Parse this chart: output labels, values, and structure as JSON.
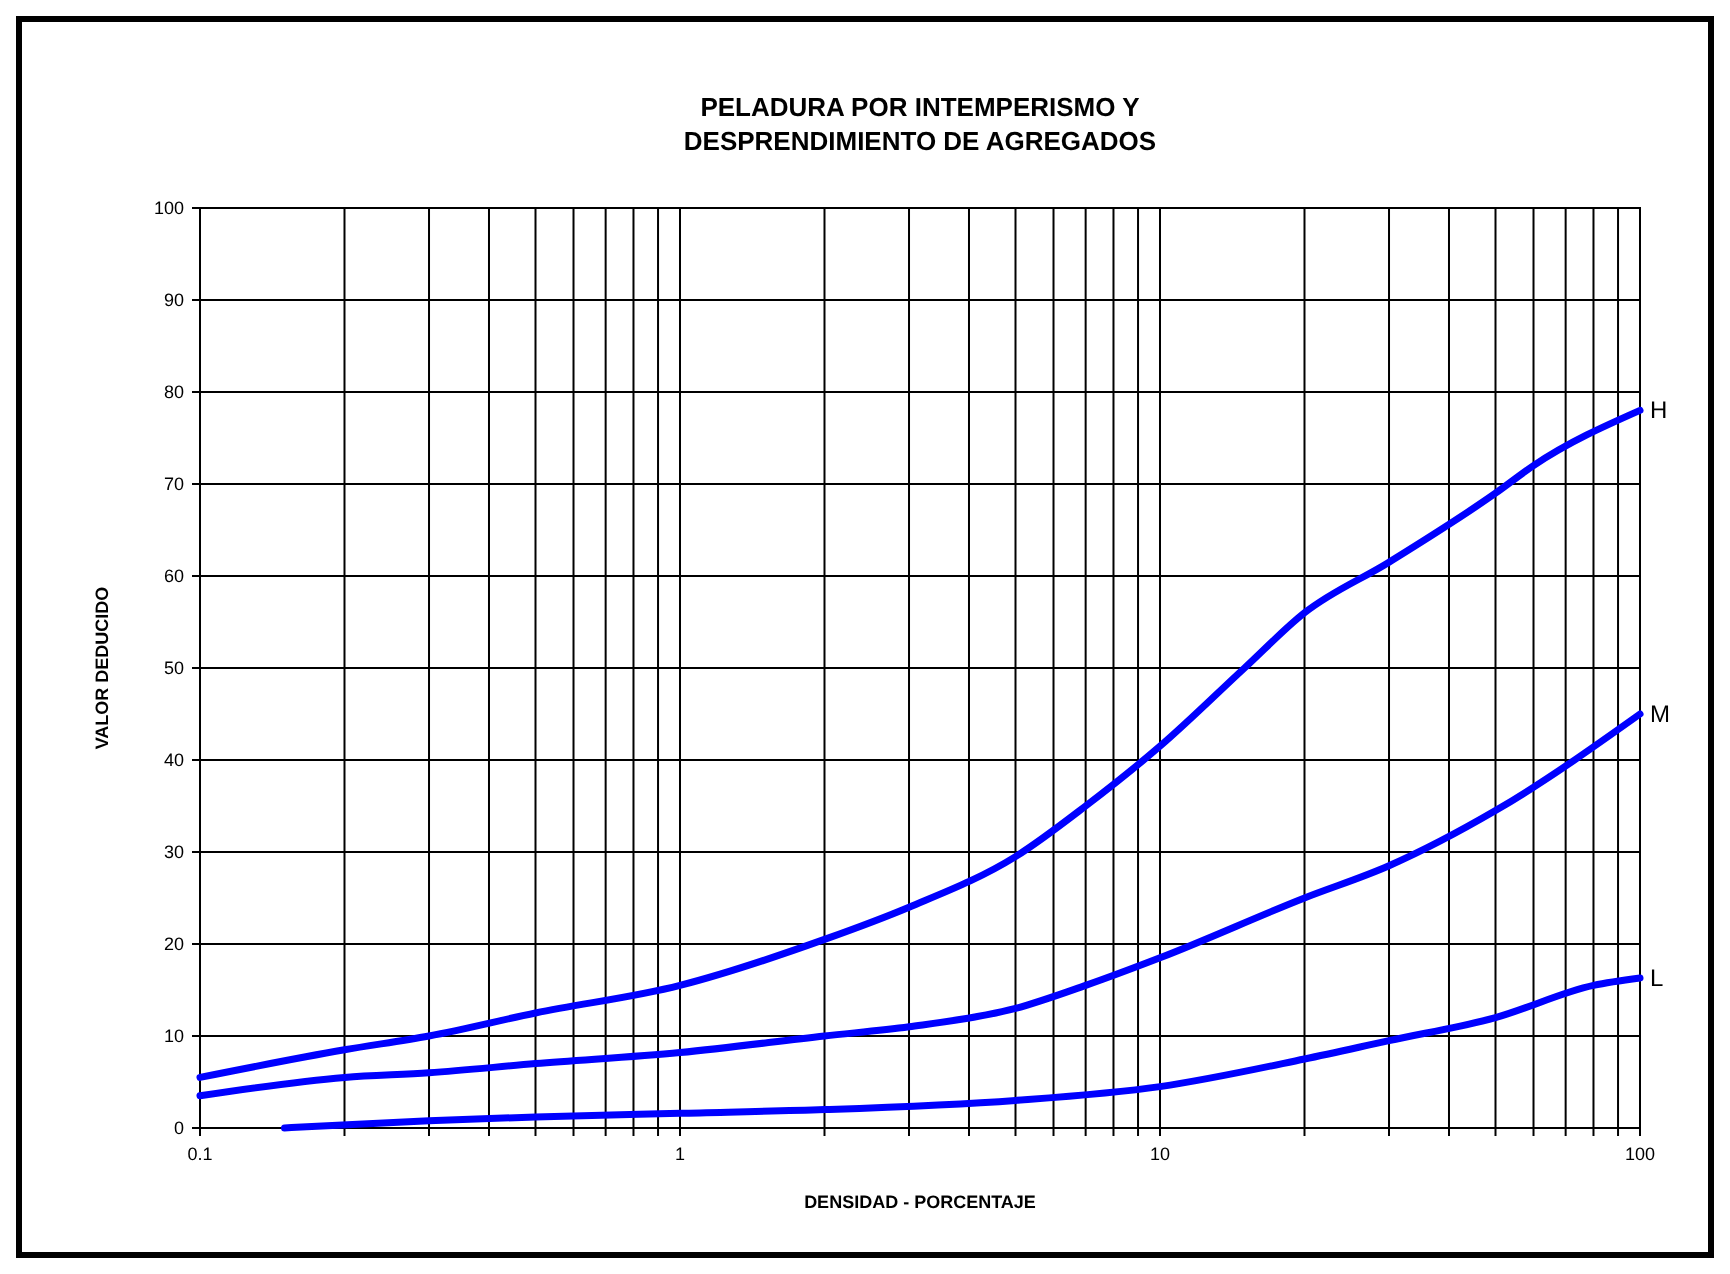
{
  "chart_data": {
    "type": "line",
    "title": "PELADURA POR INTEMPERISMO Y\nDESPRENDIMIENTO DE AGREGADOS",
    "xlabel": "DENSIDAD - PORCENTAJE",
    "ylabel": "VALOR DEDUCIDO",
    "log": "x",
    "grid": true,
    "legend": false,
    "marker": "none",
    "line_style": "solid",
    "xlim": [
      0.1,
      100
    ],
    "ylim": [
      0,
      100
    ],
    "xticks": [
      0.1,
      {
        "value": 0.2,
        "label": null
      },
      {
        "value": 0.3,
        "label": null
      },
      {
        "value": 0.4,
        "label": null
      },
      {
        "value": 0.5,
        "label": null
      },
      {
        "value": 0.6,
        "label": null
      },
      {
        "value": 0.7,
        "label": null
      },
      {
        "value": 0.8,
        "label": null
      },
      {
        "value": 0.9,
        "label": null
      },
      1,
      {
        "value": 2,
        "label": null
      },
      {
        "value": 3,
        "label": null
      },
      {
        "value": 4,
        "label": null
      },
      {
        "value": 5,
        "label": null
      },
      {
        "value": 6,
        "label": null
      },
      {
        "value": 7,
        "label": null
      },
      {
        "value": 8,
        "label": null
      },
      {
        "value": 9,
        "label": null
      },
      10,
      {
        "value": 20,
        "label": null
      },
      {
        "value": 30,
        "label": null
      },
      {
        "value": 40,
        "label": null
      },
      {
        "value": 50,
        "label": null
      },
      {
        "value": 60,
        "label": null
      },
      {
        "value": 70,
        "label": null
      },
      {
        "value": 80,
        "label": null
      },
      {
        "value": 90,
        "label": null
      },
      100
    ],
    "yticks": [
      0,
      10,
      20,
      30,
      40,
      50,
      60,
      70,
      80,
      90,
      100
    ],
    "series": [
      {
        "name": "H",
        "color": "#0000ff",
        "x": [
          0.1,
          0.2,
          0.3,
          0.5,
          1,
          2,
          3,
          5,
          7,
          10,
          15,
          20,
          30,
          50,
          60,
          100
        ],
        "values": [
          5.5,
          8.5,
          10,
          12.5,
          15.5,
          20.5,
          24,
          29.5,
          35,
          41.5,
          50,
          56,
          61.5,
          69,
          72,
          78
        ]
      },
      {
        "name": "M",
        "color": "#0000ff",
        "x": [
          0.1,
          0.2,
          0.3,
          0.5,
          1,
          2,
          3,
          5,
          7,
          10,
          20,
          30,
          50,
          100
        ],
        "values": [
          3.5,
          5.5,
          6,
          7,
          8.2,
          10,
          11,
          13,
          15.5,
          18.5,
          25,
          28.5,
          34.5,
          45
        ]
      },
      {
        "name": "L",
        "color": "#0000ff",
        "x": [
          0.15,
          0.3,
          0.5,
          1,
          2,
          5,
          10,
          20,
          30,
          50,
          80,
          100
        ],
        "values": [
          0,
          0.8,
          1.2,
          1.6,
          2,
          3,
          4.5,
          7.5,
          9.5,
          12,
          15.5,
          16.3
        ]
      }
    ]
  }
}
